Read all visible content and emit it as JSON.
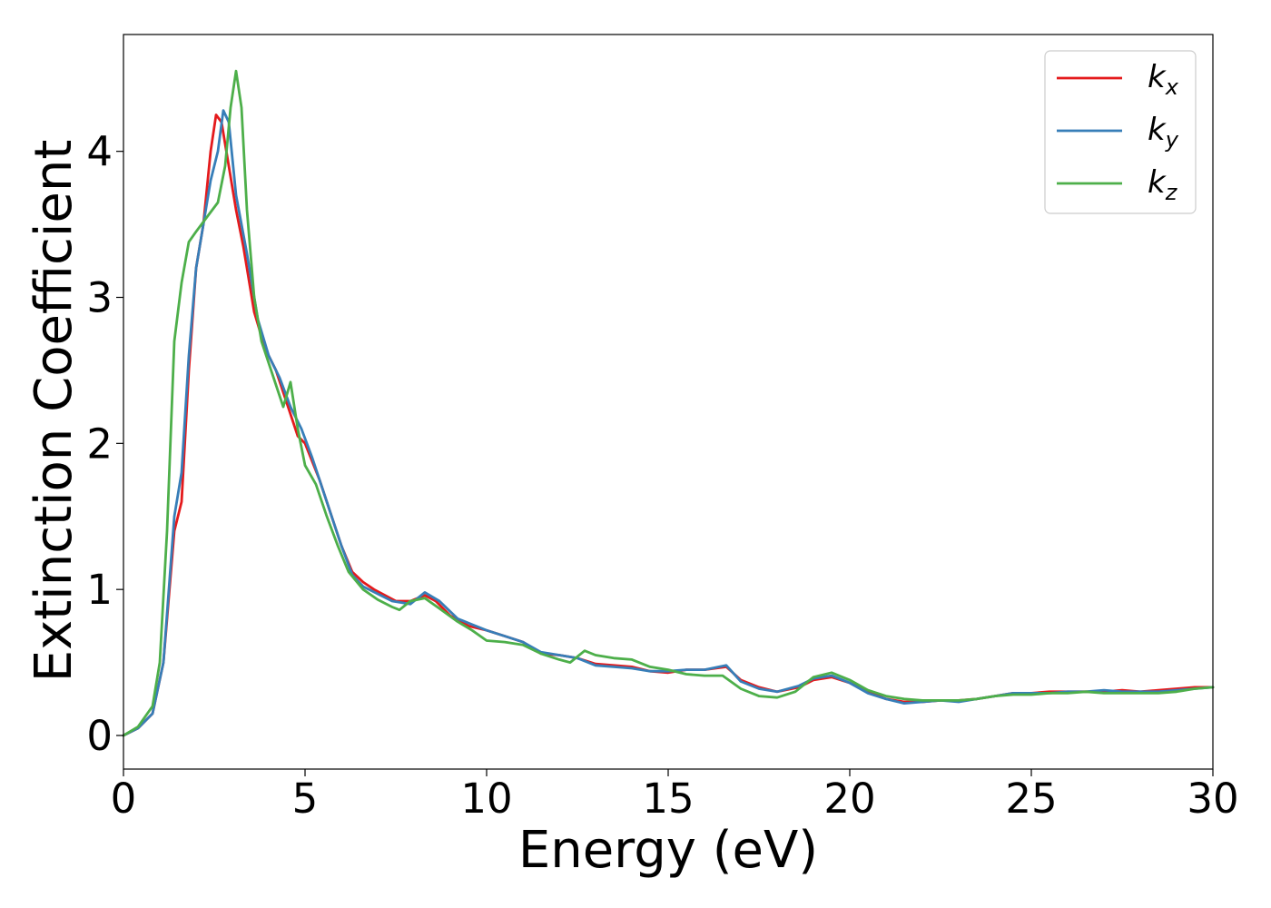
{
  "chart_data": {
    "type": "line",
    "title": "",
    "xlabel": "Energy (eV)",
    "ylabel": "Extinction Coefficient",
    "xlim": [
      0,
      30
    ],
    "ylim": [
      -0.23,
      4.8
    ],
    "xticks": [
      0,
      5,
      10,
      15,
      20,
      25,
      30
    ],
    "xtick_labels": [
      "0",
      "5",
      "10",
      "15",
      "20",
      "25",
      "30"
    ],
    "yticks": [
      0,
      1,
      2,
      3,
      4
    ],
    "ytick_labels": [
      "0",
      "1",
      "2",
      "3",
      "4"
    ],
    "grid": false,
    "legend_position": "top-right",
    "series": [
      {
        "name": "kx",
        "label_main": "k",
        "label_sub": "x",
        "color": "#e41a1c",
        "points": [
          [
            0,
            0
          ],
          [
            0.4,
            0.05
          ],
          [
            0.8,
            0.15
          ],
          [
            1.1,
            0.5
          ],
          [
            1.4,
            1.4
          ],
          [
            1.6,
            1.6
          ],
          [
            1.8,
            2.5
          ],
          [
            2.0,
            3.2
          ],
          [
            2.2,
            3.5
          ],
          [
            2.4,
            4.0
          ],
          [
            2.55,
            4.25
          ],
          [
            2.7,
            4.2
          ],
          [
            2.9,
            3.9
          ],
          [
            3.1,
            3.6
          ],
          [
            3.3,
            3.35
          ],
          [
            3.6,
            2.9
          ],
          [
            3.9,
            2.65
          ],
          [
            4.2,
            2.5
          ],
          [
            4.4,
            2.35
          ],
          [
            4.6,
            2.2
          ],
          [
            4.8,
            2.05
          ],
          [
            5.0,
            2.0
          ],
          [
            5.4,
            1.75
          ],
          [
            5.8,
            1.45
          ],
          [
            6.0,
            1.3
          ],
          [
            6.3,
            1.12
          ],
          [
            6.6,
            1.05
          ],
          [
            6.9,
            1.0
          ],
          [
            7.2,
            0.96
          ],
          [
            7.5,
            0.92
          ],
          [
            7.9,
            0.92
          ],
          [
            8.3,
            0.96
          ],
          [
            8.6,
            0.92
          ],
          [
            9.0,
            0.82
          ],
          [
            9.5,
            0.75
          ],
          [
            10.0,
            0.72
          ],
          [
            10.5,
            0.68
          ],
          [
            11.0,
            0.64
          ],
          [
            11.5,
            0.56
          ],
          [
            12.0,
            0.55
          ],
          [
            12.5,
            0.53
          ],
          [
            13.0,
            0.49
          ],
          [
            13.5,
            0.48
          ],
          [
            14.0,
            0.47
          ],
          [
            14.5,
            0.44
          ],
          [
            15.0,
            0.43
          ],
          [
            15.5,
            0.45
          ],
          [
            16.0,
            0.45
          ],
          [
            16.6,
            0.47
          ],
          [
            17.0,
            0.38
          ],
          [
            17.5,
            0.33
          ],
          [
            18.0,
            0.3
          ],
          [
            18.6,
            0.33
          ],
          [
            19.0,
            0.38
          ],
          [
            19.5,
            0.4
          ],
          [
            20.0,
            0.36
          ],
          [
            20.5,
            0.3
          ],
          [
            21.0,
            0.25
          ],
          [
            21.5,
            0.23
          ],
          [
            22.0,
            0.23
          ],
          [
            22.5,
            0.24
          ],
          [
            23.0,
            0.24
          ],
          [
            23.5,
            0.25
          ],
          [
            24.0,
            0.27
          ],
          [
            24.5,
            0.29
          ],
          [
            25.0,
            0.29
          ],
          [
            25.5,
            0.3
          ],
          [
            26.0,
            0.3
          ],
          [
            26.5,
            0.3
          ],
          [
            27.0,
            0.3
          ],
          [
            27.5,
            0.31
          ],
          [
            28.0,
            0.3
          ],
          [
            28.5,
            0.31
          ],
          [
            29.0,
            0.32
          ],
          [
            29.5,
            0.33
          ],
          [
            30.0,
            0.33
          ]
        ]
      },
      {
        "name": "ky",
        "label_main": "k",
        "label_sub": "y",
        "color": "#377eb8",
        "points": [
          [
            0,
            0
          ],
          [
            0.4,
            0.05
          ],
          [
            0.8,
            0.15
          ],
          [
            1.1,
            0.5
          ],
          [
            1.4,
            1.5
          ],
          [
            1.6,
            1.8
          ],
          [
            1.8,
            2.6
          ],
          [
            2.0,
            3.2
          ],
          [
            2.2,
            3.5
          ],
          [
            2.4,
            3.8
          ],
          [
            2.6,
            4.0
          ],
          [
            2.75,
            4.28
          ],
          [
            2.9,
            4.2
          ],
          [
            3.1,
            3.7
          ],
          [
            3.4,
            3.3
          ],
          [
            3.7,
            2.85
          ],
          [
            4.0,
            2.6
          ],
          [
            4.3,
            2.45
          ],
          [
            4.6,
            2.25
          ],
          [
            4.9,
            2.1
          ],
          [
            5.2,
            1.9
          ],
          [
            5.6,
            1.6
          ],
          [
            6.0,
            1.3
          ],
          [
            6.3,
            1.1
          ],
          [
            6.6,
            1.02
          ],
          [
            7.0,
            0.97
          ],
          [
            7.4,
            0.92
          ],
          [
            7.9,
            0.9
          ],
          [
            8.3,
            0.98
          ],
          [
            8.7,
            0.92
          ],
          [
            9.2,
            0.8
          ],
          [
            9.6,
            0.76
          ],
          [
            10.0,
            0.72
          ],
          [
            10.5,
            0.68
          ],
          [
            11.0,
            0.64
          ],
          [
            11.5,
            0.57
          ],
          [
            12.0,
            0.55
          ],
          [
            12.5,
            0.53
          ],
          [
            13.0,
            0.48
          ],
          [
            13.5,
            0.47
          ],
          [
            14.0,
            0.46
          ],
          [
            14.5,
            0.44
          ],
          [
            15.0,
            0.44
          ],
          [
            15.5,
            0.45
          ],
          [
            16.0,
            0.45
          ],
          [
            16.6,
            0.48
          ],
          [
            17.0,
            0.37
          ],
          [
            17.5,
            0.32
          ],
          [
            18.0,
            0.3
          ],
          [
            18.6,
            0.34
          ],
          [
            19.0,
            0.39
          ],
          [
            19.5,
            0.41
          ],
          [
            20.0,
            0.36
          ],
          [
            20.5,
            0.29
          ],
          [
            21.0,
            0.25
          ],
          [
            21.5,
            0.22
          ],
          [
            22.0,
            0.23
          ],
          [
            22.5,
            0.24
          ],
          [
            23.0,
            0.23
          ],
          [
            23.5,
            0.25
          ],
          [
            24.0,
            0.27
          ],
          [
            24.5,
            0.29
          ],
          [
            25.0,
            0.29
          ],
          [
            25.5,
            0.29
          ],
          [
            26.0,
            0.3
          ],
          [
            26.5,
            0.3
          ],
          [
            27.0,
            0.31
          ],
          [
            27.5,
            0.3
          ],
          [
            28.0,
            0.3
          ],
          [
            28.5,
            0.3
          ],
          [
            29.0,
            0.31
          ],
          [
            29.5,
            0.32
          ],
          [
            30.0,
            0.33
          ]
        ]
      },
      {
        "name": "kz",
        "label_main": "k",
        "label_sub": "z",
        "color": "#4daf4a",
        "points": [
          [
            0,
            0
          ],
          [
            0.4,
            0.06
          ],
          [
            0.8,
            0.2
          ],
          [
            1.0,
            0.5
          ],
          [
            1.2,
            1.4
          ],
          [
            1.4,
            2.7
          ],
          [
            1.6,
            3.1
          ],
          [
            1.8,
            3.38
          ],
          [
            2.0,
            3.45
          ],
          [
            2.3,
            3.55
          ],
          [
            2.6,
            3.65
          ],
          [
            2.8,
            3.9
          ],
          [
            2.95,
            4.3
          ],
          [
            3.1,
            4.55
          ],
          [
            3.25,
            4.3
          ],
          [
            3.4,
            3.6
          ],
          [
            3.6,
            3.0
          ],
          [
            3.8,
            2.7
          ],
          [
            4.0,
            2.55
          ],
          [
            4.2,
            2.4
          ],
          [
            4.4,
            2.25
          ],
          [
            4.6,
            2.42
          ],
          [
            4.8,
            2.1
          ],
          [
            5.0,
            1.85
          ],
          [
            5.3,
            1.72
          ],
          [
            5.6,
            1.5
          ],
          [
            5.9,
            1.3
          ],
          [
            6.2,
            1.12
          ],
          [
            6.6,
            1.0
          ],
          [
            7.0,
            0.93
          ],
          [
            7.4,
            0.88
          ],
          [
            7.6,
            0.86
          ],
          [
            7.9,
            0.92
          ],
          [
            8.3,
            0.94
          ],
          [
            8.7,
            0.87
          ],
          [
            9.2,
            0.78
          ],
          [
            9.6,
            0.72
          ],
          [
            10.0,
            0.65
          ],
          [
            10.5,
            0.64
          ],
          [
            11.0,
            0.62
          ],
          [
            11.5,
            0.56
          ],
          [
            12.0,
            0.52
          ],
          [
            12.3,
            0.5
          ],
          [
            12.7,
            0.58
          ],
          [
            13.0,
            0.55
          ],
          [
            13.5,
            0.53
          ],
          [
            14.0,
            0.52
          ],
          [
            14.5,
            0.47
          ],
          [
            15.0,
            0.45
          ],
          [
            15.5,
            0.42
          ],
          [
            16.0,
            0.41
          ],
          [
            16.5,
            0.41
          ],
          [
            17.0,
            0.32
          ],
          [
            17.5,
            0.27
          ],
          [
            18.0,
            0.26
          ],
          [
            18.5,
            0.3
          ],
          [
            19.0,
            0.4
          ],
          [
            19.5,
            0.43
          ],
          [
            20.0,
            0.38
          ],
          [
            20.5,
            0.31
          ],
          [
            21.0,
            0.27
          ],
          [
            21.5,
            0.25
          ],
          [
            22.0,
            0.24
          ],
          [
            22.5,
            0.24
          ],
          [
            23.0,
            0.24
          ],
          [
            23.5,
            0.25
          ],
          [
            24.0,
            0.27
          ],
          [
            24.5,
            0.28
          ],
          [
            25.0,
            0.28
          ],
          [
            25.5,
            0.29
          ],
          [
            26.0,
            0.29
          ],
          [
            26.5,
            0.3
          ],
          [
            27.0,
            0.29
          ],
          [
            27.5,
            0.29
          ],
          [
            28.0,
            0.29
          ],
          [
            28.5,
            0.29
          ],
          [
            29.0,
            0.3
          ],
          [
            29.5,
            0.32
          ],
          [
            30.0,
            0.33
          ]
        ]
      }
    ]
  }
}
